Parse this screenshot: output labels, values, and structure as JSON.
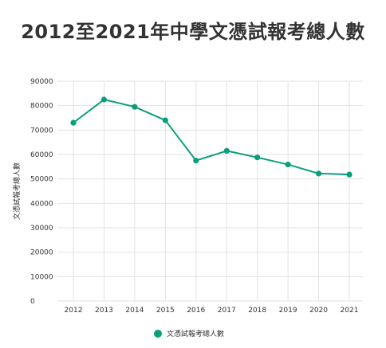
{
  "chart_data": {
    "type": "line",
    "title": "2012至2021年中學文憑試報考總人數",
    "ylabel": "文憑試報考總人數",
    "xlabel": "",
    "x": [
      "2012",
      "2013",
      "2014",
      "2015",
      "2016",
      "2017",
      "2018",
      "2019",
      "2020",
      "2021"
    ],
    "series": [
      {
        "name": "文憑試報考總人數",
        "values": [
          73000,
          82500,
          79500,
          74000,
          57500,
          61500,
          58800,
          55900,
          52200,
          51800
        ]
      }
    ],
    "ylim": [
      0,
      90000
    ],
    "yticks": [
      "0",
      "10000",
      "20000",
      "30000",
      "40000",
      "50000",
      "60000",
      "70000",
      "80000",
      "90000"
    ],
    "grid": true,
    "legend_position": "bottom",
    "colors": {
      "series": "#0a9f7c",
      "grid": "#e2e2e2",
      "text": "#333333"
    }
  }
}
